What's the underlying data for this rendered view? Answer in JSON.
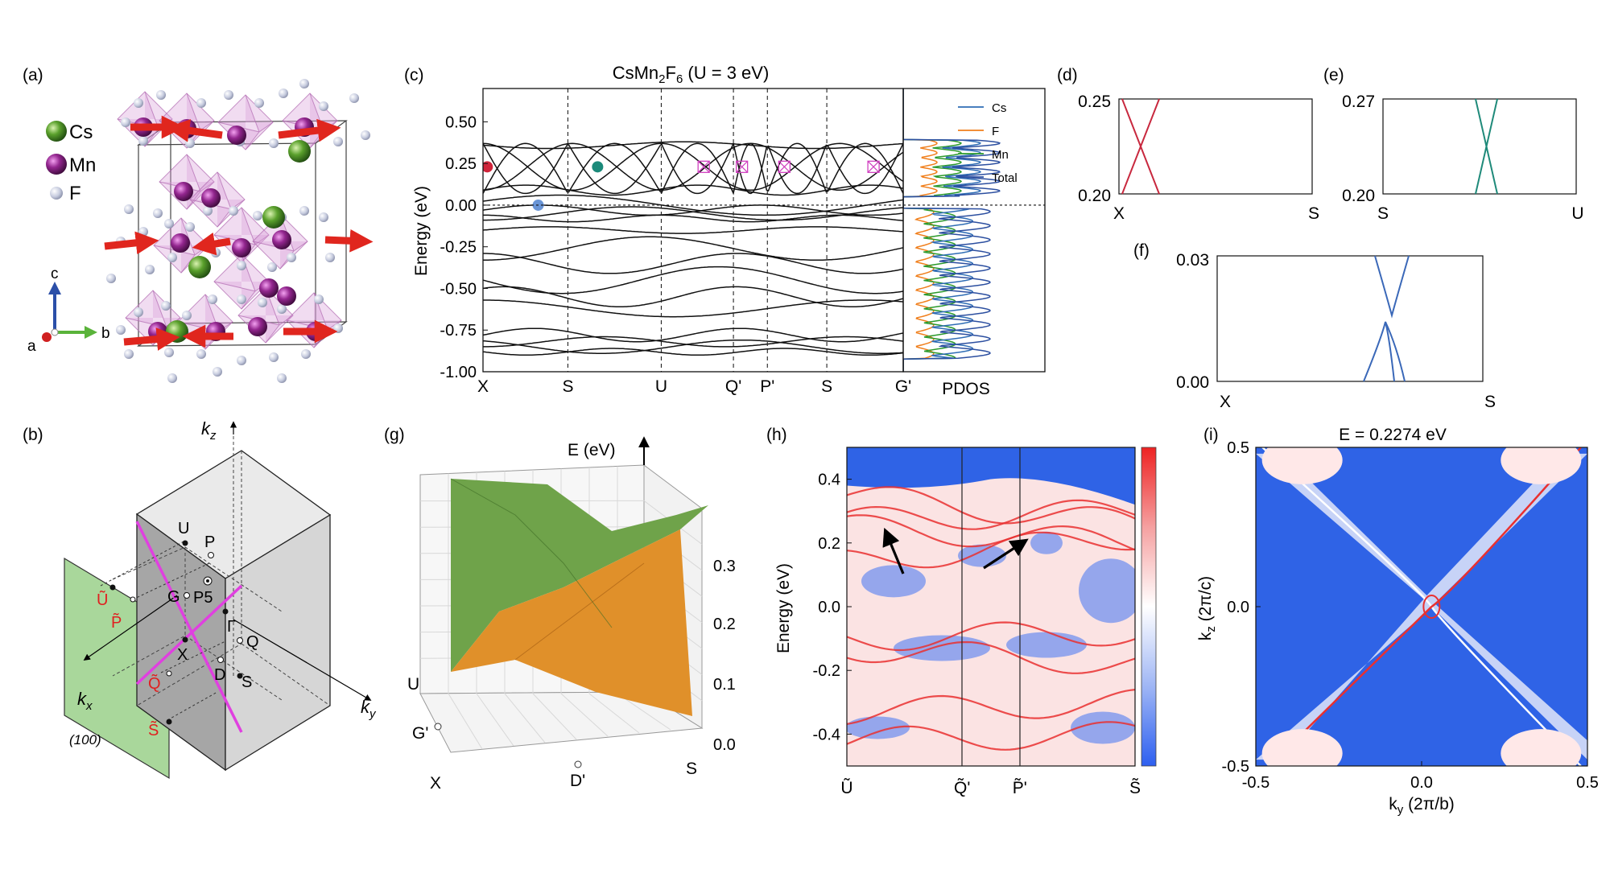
{
  "panels": {
    "a": "(a)",
    "b": "(b)",
    "c": "(c)",
    "d": "(d)",
    "e": "(e)",
    "f": "(f)",
    "g": "(g)",
    "h": "(h)",
    "i": "(i)"
  },
  "colors": {
    "cs": "#4f8a2b",
    "mn": "#8a2a8a",
    "f": "#c8cde0",
    "arrow": "#e0261e",
    "red_dot": "#d0243a",
    "blue_dot": "#6a95d6",
    "teal_dot": "#1b8a7a",
    "pdos_cs": "#2f6db5",
    "pdos_f": "#f07f1c",
    "pdos_mn": "#2c9a2c",
    "pdos_total": "#2c4fa0",
    "d_lines": "#c8283e",
    "e_lines": "#1f8a7a",
    "f_lines": "#3a68b8",
    "plane": "#a9d79b",
    "magenta": "#e040e0",
    "g_top": "#6fa34a",
    "g_bottom": "#e0902a",
    "surf_blue": "#2f63e6",
    "surf_red": "#e93030"
  },
  "panel_a": {
    "legend": [
      {
        "label": "Cs"
      },
      {
        "label": "Mn"
      },
      {
        "label": "F"
      }
    ],
    "axes": {
      "a": "a",
      "b": "b",
      "c": "c"
    }
  },
  "panel_b": {
    "axes": {
      "kz": "k",
      "kz_sub": "z",
      "ky": "k",
      "ky_sub": "y",
      "kx": "k",
      "kx_sub": "x"
    },
    "points": {
      "U": "U",
      "P": "P",
      "G": "G",
      "P5": "P5",
      "Gamma": "Γ",
      "Q": "Q",
      "X": "X",
      "D": "D",
      "S": "S"
    },
    "proj_points": {
      "U": "Ũ",
      "P": "P̃",
      "Q": "Q̃",
      "S": "S̃"
    },
    "plane_label": "(100)"
  },
  "chart_data": [
    {
      "id": "c",
      "type": "line",
      "title": "CsMn2F6 (U = 3 eV)",
      "title_parts": {
        "a": "CsMn",
        "s1": "2",
        "b": "F",
        "s2": "6",
        "c": " (U = 3 eV)"
      },
      "ylabel": "Energy (eV)",
      "ylim": [
        -1.0,
        0.7
      ],
      "yticks": [
        {
          "v": 0.5,
          "t": "0.50"
        },
        {
          "v": 0.25,
          "t": "0.25"
        },
        {
          "v": 0.0,
          "t": "0.00"
        },
        {
          "v": -0.25,
          "t": "-0.25"
        },
        {
          "v": -0.5,
          "t": "-0.50"
        },
        {
          "v": -0.75,
          "t": "-0.75"
        },
        {
          "v": -1.0,
          "t": "-1.00"
        }
      ],
      "kpoints": [
        {
          "label": "X",
          "x": 0
        },
        {
          "label": "S",
          "x": 1
        },
        {
          "label": "U",
          "x": 2.1
        },
        {
          "label": "Q'",
          "x": 2.95
        },
        {
          "label": "P'",
          "x": 3.35
        },
        {
          "label": "S",
          "x": 4.05
        },
        {
          "label": "G'",
          "x": 4.95
        }
      ],
      "dots": [
        {
          "x": 0.05,
          "y": 0.23,
          "c": "red_dot"
        },
        {
          "x": 0.65,
          "y": 0.0,
          "c": "blue_dot"
        },
        {
          "x": 1.35,
          "y": 0.23,
          "c": "teal_dot"
        }
      ],
      "crosses": [
        {
          "x": 2.6,
          "y": 0.23
        },
        {
          "x": 3.05,
          "y": 0.23
        },
        {
          "x": 3.55,
          "y": 0.23
        },
        {
          "x": 4.6,
          "y": 0.23
        }
      ],
      "pdos": {
        "label": "PDOS",
        "legend": [
          "Cs",
          "F",
          "Mn",
          "Total"
        ]
      }
    },
    {
      "id": "d",
      "type": "line",
      "ylim": [
        0.2,
        0.25
      ],
      "yticks": [
        {
          "v": 0.25,
          "t": "0.25"
        },
        {
          "v": 0.2,
          "t": "0.20"
        }
      ],
      "xlabels": [
        "X",
        "S"
      ]
    },
    {
      "id": "e",
      "type": "line",
      "ylim": [
        0.2,
        0.27
      ],
      "yticks": [
        {
          "v": 0.27,
          "t": "0.27"
        },
        {
          "v": 0.2,
          "t": "0.20"
        }
      ],
      "xlabels": [
        "S",
        "U"
      ]
    },
    {
      "id": "f",
      "type": "line",
      "ylim": [
        0.0,
        0.03
      ],
      "yticks": [
        {
          "v": 0.03,
          "t": "0.03"
        },
        {
          "v": 0.0,
          "t": "0.00"
        }
      ],
      "xlabels": [
        "X",
        "S"
      ]
    },
    {
      "id": "g",
      "type": "surface3d",
      "zlabel": "E (eV)",
      "zticks": [
        "0.3",
        "0.2",
        "0.1",
        "0.0"
      ],
      "axis_labels": {
        "U": "U",
        "G": "G'",
        "X": "X",
        "D": "D'",
        "S": "S"
      }
    },
    {
      "id": "h",
      "type": "heatmap",
      "ylabel": "Energy (eV)",
      "ylim": [
        -0.5,
        0.5
      ],
      "yticks": [
        {
          "v": 0.4,
          "t": "0.4"
        },
        {
          "v": 0.2,
          "t": "0.2"
        },
        {
          "v": 0.0,
          "t": "0.0"
        },
        {
          "v": -0.2,
          "t": "-0.2"
        },
        {
          "v": -0.4,
          "t": "-0.4"
        }
      ],
      "xlabels": [
        {
          "label": "Ũ",
          "x": 0
        },
        {
          "label": "Q̃'",
          "x": 0.4
        },
        {
          "label": "P̃'",
          "x": 0.6
        },
        {
          "label": "S̃",
          "x": 1
        }
      ]
    },
    {
      "id": "i",
      "type": "heatmap",
      "title": "E = 0.2274 eV",
      "xlabel": "ky (2π/b)",
      "ylabel": "kz (2π/c)",
      "xlabel_parts": {
        "a": "k",
        "sub": "y",
        "b": " (2π/b)"
      },
      "ylabel_parts": {
        "a": "k",
        "sub": "z",
        "b": " (2π/c)"
      },
      "xticks": [
        {
          "v": -0.5,
          "t": "-0.5"
        },
        {
          "v": 0.0,
          "t": "0.0"
        },
        {
          "v": 0.5,
          "t": "0.5"
        }
      ],
      "yticks": [
        {
          "v": 0.5,
          "t": "0.5"
        },
        {
          "v": 0.0,
          "t": "0.0"
        },
        {
          "v": -0.5,
          "t": "-0.5"
        }
      ]
    }
  ]
}
